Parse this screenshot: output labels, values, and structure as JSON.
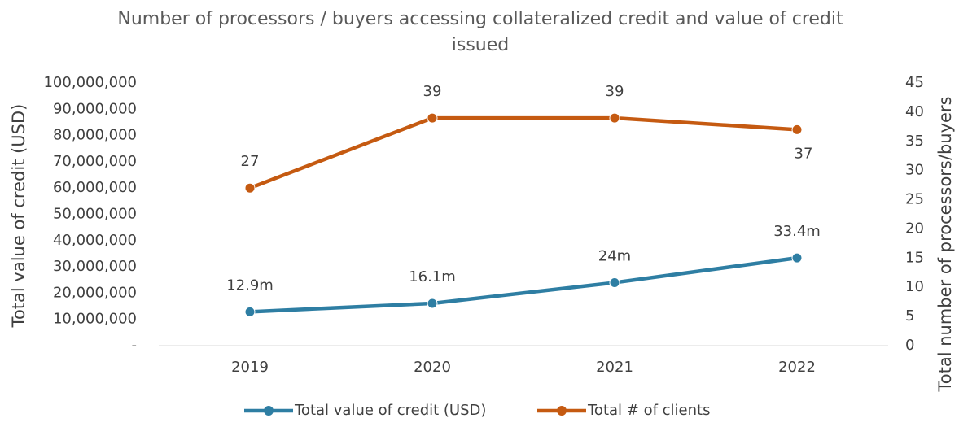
{
  "chart_data": {
    "type": "line",
    "title": "Number of processors / buyers accessing collateralized credit and value of credit issued",
    "categories": [
      "2019",
      "2020",
      "2021",
      "2022"
    ],
    "series": [
      {
        "name": "Total value of credit (USD)",
        "color": "#2e7ea3",
        "values": [
          12900000,
          16100000,
          24000000,
          33400000
        ],
        "value_labels": [
          "12.9m",
          "16.1m",
          "24m",
          "33.4m"
        ]
      },
      {
        "name": "Total # of clients",
        "color": "#c55a11",
        "axis": "y2",
        "values": [
          27,
          39,
          39,
          37
        ]
      }
    ],
    "ylabel": "Total value of credit (USD)",
    "y2label": "Total number of processors/buyers",
    "ylim": [
      0,
      100000000
    ],
    "yticks": [
      {
        "value": 0,
        "label": "-"
      },
      {
        "value": 10000000,
        "label": "10,000,000"
      },
      {
        "value": 20000000,
        "label": "20,000,000"
      },
      {
        "value": 30000000,
        "label": "30,000,000"
      },
      {
        "value": 40000000,
        "label": "40,000,000"
      },
      {
        "value": 50000000,
        "label": "50,000,000"
      },
      {
        "value": 60000000,
        "label": "60,000,000"
      },
      {
        "value": 70000000,
        "label": "70,000,000"
      },
      {
        "value": 80000000,
        "label": "80,000,000"
      },
      {
        "value": 90000000,
        "label": "90,000,000"
      },
      {
        "value": 100000000,
        "label": "100,000,000"
      }
    ],
    "y2lim": [
      0,
      45
    ],
    "y2ticks": [
      0,
      5,
      10,
      15,
      20,
      25,
      30,
      35,
      40,
      45
    ],
    "legend": "bottom"
  }
}
